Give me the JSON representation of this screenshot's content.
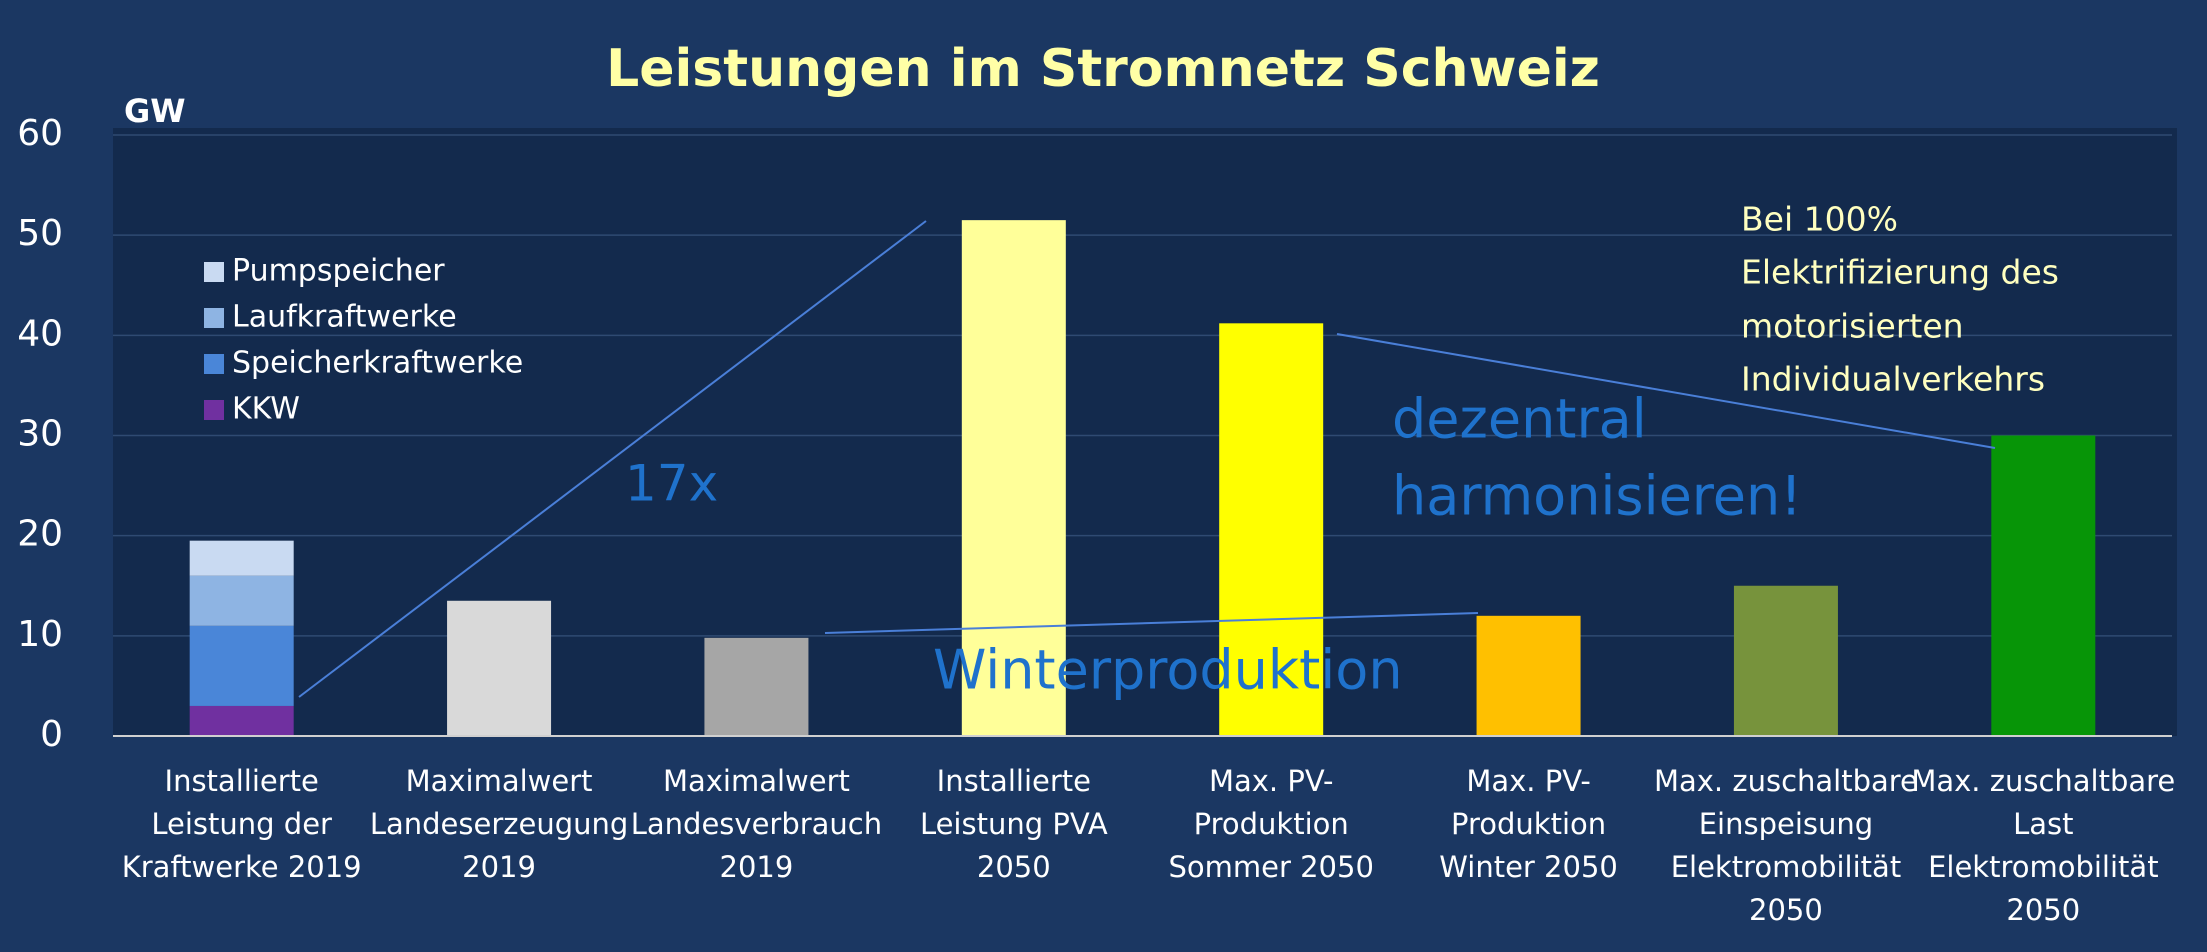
{
  "chart_data": {
    "type": "stacked-bar",
    "title": "Leistungen im Stromnetz Schweiz",
    "y_label": "GW",
    "categories": [
      [
        "Installierte",
        "Leistung der",
        "Kraftwerke 2019"
      ],
      [
        "Maximalwert",
        "Landeserzeugung",
        "2019"
      ],
      [
        "Maximalwert",
        "Landesverbrauch",
        "2019"
      ],
      [
        "Installierte",
        "Leistung PVA",
        "2050"
      ],
      [
        "Max. PV-",
        "Produktion",
        "Sommer 2050"
      ],
      [
        "Max. PV-",
        "Produktion",
        "Winter 2050"
      ],
      [
        "Max. zuschaltbare",
        "Einspeisung",
        "Elektromobilität",
        "2050"
      ],
      [
        "Max. zuschaltbare",
        "Last",
        "Elektromobilität",
        "2050"
      ]
    ],
    "series": [
      {
        "name": "KKW",
        "color": "#7030a0",
        "values": [
          3,
          null,
          null,
          null,
          null,
          null,
          null,
          null
        ]
      },
      {
        "name": "Speicherkraftwerke",
        "color": "#4a86d8",
        "values": [
          8,
          null,
          null,
          null,
          null,
          null,
          null,
          null
        ]
      },
      {
        "name": "Laufkraftwerke",
        "color": "#8eb4e3",
        "values": [
          5,
          null,
          null,
          null,
          null,
          null,
          null,
          null
        ]
      },
      {
        "name": "Pumpspeicher",
        "color": "#c9daf2",
        "values": [
          3.5,
          null,
          null,
          null,
          null,
          null,
          null,
          null
        ]
      },
      {
        "colors": [
          null,
          "#d9d9d9",
          "#a6a6a6",
          "#ffff99",
          "#ffff00",
          "#ffc000",
          "#77933c",
          "#079507"
        ],
        "values": [
          null,
          13.5,
          9.8,
          51.5,
          41.2,
          12,
          15,
          30
        ]
      }
    ],
    "ylim": [
      0,
      60
    ],
    "yticks": [
      0,
      10,
      20,
      30,
      40,
      50,
      60
    ],
    "grid": true,
    "annotations": {
      "factor": "17x",
      "harmonize": [
        "dezentral",
        "harmonisieren!"
      ],
      "winter": "Winterproduktion",
      "note": [
        "Bei 100%",
        "Elektrifizierung des",
        "motorisierten",
        "Individualverkehrs"
      ]
    }
  }
}
